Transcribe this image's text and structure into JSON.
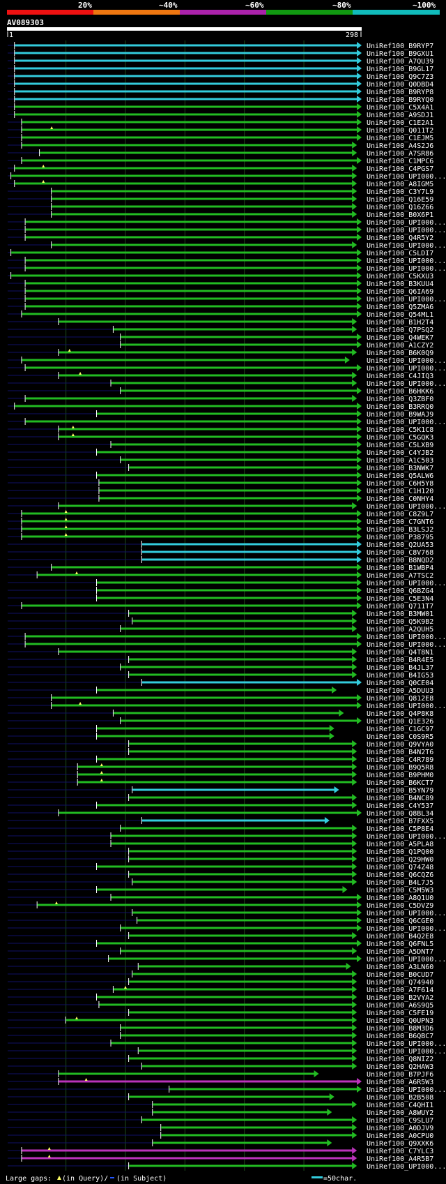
{
  "header": {
    "scale_labels": [
      "20%",
      "~40%",
      "~60%",
      "~80%",
      "~100%"
    ],
    "scale_colors": [
      "#ee1111",
      "#ee7711",
      "#aa22aa",
      "#119911",
      "#11bbbb"
    ],
    "query_id": "AV089303",
    "ruler_start": "1",
    "ruler_end": "298"
  },
  "footer": {
    "gaps_label": "Large gaps:",
    "in_query": "(in Query)/",
    "in_subject": "(in Subject)",
    "scale_label": "=50char."
  },
  "colors": {
    "cyan": "#33ccdd",
    "green": "#22bb22",
    "magenta": "#bb33bb",
    "navy": "#111166",
    "gap_marker": "#ffff66",
    "grid": "#1b4a1b"
  },
  "chart_data": {
    "type": "alignment",
    "query_length": 298,
    "x_range": [
      1,
      298
    ],
    "grid_columns_at": [
      50,
      100,
      150,
      200,
      250
    ],
    "hits": [
      {
        "name": "UniRef100_B9RYP7",
        "start": 7,
        "end": 298,
        "color": "cyan"
      },
      {
        "name": "UniRef100_B9GXU1",
        "start": 7,
        "end": 298,
        "color": "cyan"
      },
      {
        "name": "UniRef100_A7QU39",
        "start": 7,
        "end": 298,
        "color": "cyan"
      },
      {
        "name": "UniRef100_B9GL17",
        "start": 7,
        "end": 298,
        "color": "cyan"
      },
      {
        "name": "UniRef100_Q9C7Z3",
        "start": 7,
        "end": 298,
        "color": "cyan"
      },
      {
        "name": "UniRef100_Q0DBD4",
        "start": 7,
        "end": 298,
        "color": "cyan"
      },
      {
        "name": "UniRef100_B9RYP8",
        "start": 7,
        "end": 298,
        "color": "cyan"
      },
      {
        "name": "UniRef100_B9RYQ0",
        "start": 7,
        "end": 298,
        "color": "cyan"
      },
      {
        "name": "UniRef100_C5X4A1",
        "start": 7,
        "end": 298,
        "color": "green"
      },
      {
        "name": "UniRef100_A9SDJ1",
        "start": 7,
        "end": 298,
        "color": "green"
      },
      {
        "name": "UniRef100_C1E2A1",
        "start": 13,
        "end": 298,
        "color": "green"
      },
      {
        "name": "UniRef100_Q011T2",
        "start": 13,
        "end": 298,
        "color": "green",
        "gaps": [
          38
        ]
      },
      {
        "name": "UniRef100_C1EJM5",
        "start": 13,
        "end": 298,
        "color": "green"
      },
      {
        "name": "UniRef100_A4S2J6",
        "start": 13,
        "end": 294,
        "color": "green"
      },
      {
        "name": "UniRef100_A7SR86",
        "start": 28,
        "end": 294,
        "color": "green"
      },
      {
        "name": "UniRef100_C1MPC6",
        "start": 13,
        "end": 298,
        "color": "green"
      },
      {
        "name": "UniRef100_C4PGS7",
        "start": 7,
        "end": 294,
        "color": "green",
        "gaps": [
          31
        ]
      },
      {
        "name": "UniRef100_UPI000...",
        "start": 4,
        "end": 294,
        "color": "green"
      },
      {
        "name": "UniRef100_A8IGM5",
        "start": 7,
        "end": 294,
        "color": "green",
        "gaps": [
          31
        ]
      },
      {
        "name": "UniRef100_C3Y7L9",
        "start": 38,
        "end": 294,
        "color": "green"
      },
      {
        "name": "UniRef100_Q16E59",
        "start": 38,
        "end": 294,
        "color": "green"
      },
      {
        "name": "UniRef100_Q16Z66",
        "start": 38,
        "end": 294,
        "color": "green"
      },
      {
        "name": "UniRef100_B0X6P1",
        "start": 38,
        "end": 294,
        "color": "green"
      },
      {
        "name": "UniRef100_UPI000...",
        "start": 16,
        "end": 298,
        "color": "green"
      },
      {
        "name": "UniRef100_UPI000...",
        "start": 16,
        "end": 298,
        "color": "green"
      },
      {
        "name": "UniRef100_Q4R5Y2",
        "start": 16,
        "end": 298,
        "color": "green"
      },
      {
        "name": "UniRef100_UPI000...",
        "start": 38,
        "end": 294,
        "color": "green"
      },
      {
        "name": "UniRef100_C5LDI7",
        "start": 4,
        "end": 298,
        "color": "green"
      },
      {
        "name": "UniRef100_UPI000...",
        "start": 16,
        "end": 298,
        "color": "green"
      },
      {
        "name": "UniRef100_UPI000...",
        "start": 16,
        "end": 298,
        "color": "green"
      },
      {
        "name": "UniRef100_C5KXU3",
        "start": 4,
        "end": 298,
        "color": "green"
      },
      {
        "name": "UniRef100_B3KUU4",
        "start": 16,
        "end": 298,
        "color": "green"
      },
      {
        "name": "UniRef100_Q6IA69",
        "start": 16,
        "end": 298,
        "color": "green"
      },
      {
        "name": "UniRef100_UPI000...",
        "start": 16,
        "end": 298,
        "color": "green"
      },
      {
        "name": "UniRef100_Q5ZMA6",
        "start": 16,
        "end": 298,
        "color": "green"
      },
      {
        "name": "UniRef100_Q54ML1",
        "start": 13,
        "end": 298,
        "color": "green"
      },
      {
        "name": "UniRef100_B1H2T4",
        "start": 44,
        "end": 294,
        "color": "green"
      },
      {
        "name": "UniRef100_Q7PSQ2",
        "start": 90,
        "end": 294,
        "color": "green"
      },
      {
        "name": "UniRef100_Q4WEK7",
        "start": 96,
        "end": 298,
        "color": "green"
      },
      {
        "name": "UniRef100_A1CZY2",
        "start": 96,
        "end": 298,
        "color": "green"
      },
      {
        "name": "UniRef100_B6K0Q9",
        "start": 44,
        "end": 294,
        "color": "green",
        "gaps": [
          53
        ]
      },
      {
        "name": "UniRef100_UPI000...",
        "start": 13,
        "end": 288,
        "color": "green"
      },
      {
        "name": "UniRef100_UPI000...",
        "start": 16,
        "end": 298,
        "color": "green"
      },
      {
        "name": "UniRef100_C4JIQ3",
        "start": 44,
        "end": 294,
        "color": "green",
        "gaps": [
          62
        ]
      },
      {
        "name": "UniRef100_UPI000...",
        "start": 88,
        "end": 294,
        "color": "green"
      },
      {
        "name": "UniRef100_B6HKK6",
        "start": 96,
        "end": 298,
        "color": "green"
      },
      {
        "name": "UniRef100_Q3ZBF0",
        "start": 16,
        "end": 294,
        "color": "green"
      },
      {
        "name": "UniRef100_B3RRQ0",
        "start": 7,
        "end": 298,
        "color": "green"
      },
      {
        "name": "UniRef100_B9WAJ9",
        "start": 76,
        "end": 298,
        "color": "green"
      },
      {
        "name": "UniRef100_UPI000...",
        "start": 16,
        "end": 298,
        "color": "green"
      },
      {
        "name": "UniRef100_C5K1C8",
        "start": 44,
        "end": 298,
        "color": "green",
        "gaps": [
          56
        ]
      },
      {
        "name": "UniRef100_C5GQK3",
        "start": 44,
        "end": 298,
        "color": "green",
        "gaps": [
          56
        ]
      },
      {
        "name": "UniRef100_C5LXB9",
        "start": 88,
        "end": 298,
        "color": "green"
      },
      {
        "name": "UniRef100_C4YJB2",
        "start": 76,
        "end": 298,
        "color": "green"
      },
      {
        "name": "UniRef100_A1C503",
        "start": 96,
        "end": 298,
        "color": "green"
      },
      {
        "name": "UniRef100_B3NWK7",
        "start": 103,
        "end": 298,
        "color": "green"
      },
      {
        "name": "UniRef100_Q5ALW6",
        "start": 76,
        "end": 298,
        "color": "green"
      },
      {
        "name": "UniRef100_C6H5Y8",
        "start": 78,
        "end": 298,
        "color": "green"
      },
      {
        "name": "UniRef100_C1H120",
        "start": 78,
        "end": 298,
        "color": "green"
      },
      {
        "name": "UniRef100_C0NHY4",
        "start": 78,
        "end": 298,
        "color": "green"
      },
      {
        "name": "UniRef100_UPI000...",
        "start": 44,
        "end": 294,
        "color": "green"
      },
      {
        "name": "UniRef100_C8Z9L7",
        "start": 13,
        "end": 298,
        "color": "green",
        "gaps": [
          50
        ]
      },
      {
        "name": "UniRef100_C7GNT6",
        "start": 13,
        "end": 298,
        "color": "green",
        "gaps": [
          50
        ]
      },
      {
        "name": "UniRef100_B3LSJ2",
        "start": 13,
        "end": 298,
        "color": "green",
        "gaps": [
          50
        ]
      },
      {
        "name": "UniRef100_P38795",
        "start": 13,
        "end": 298,
        "color": "green",
        "gaps": [
          50
        ]
      },
      {
        "name": "UniRef100_Q2UA53",
        "start": 114,
        "end": 298,
        "color": "cyan"
      },
      {
        "name": "UniRef100_C8V768",
        "start": 114,
        "end": 298,
        "color": "cyan"
      },
      {
        "name": "UniRef100_B8NQD2",
        "start": 114,
        "end": 298,
        "color": "cyan"
      },
      {
        "name": "UniRef100_B1WBP4",
        "start": 38,
        "end": 298,
        "color": "green"
      },
      {
        "name": "UniRef100_A7TSC2",
        "start": 26,
        "end": 298,
        "color": "green",
        "gaps": [
          59
        ]
      },
      {
        "name": "UniRef100_UPI000...",
        "start": 76,
        "end": 298,
        "color": "green"
      },
      {
        "name": "UniRef100_Q6BZG4",
        "start": 76,
        "end": 298,
        "color": "green"
      },
      {
        "name": "UniRef100_C5E3N4",
        "start": 76,
        "end": 298,
        "color": "green"
      },
      {
        "name": "UniRef100_Q711T7",
        "start": 13,
        "end": 298,
        "color": "green"
      },
      {
        "name": "UniRef100_B3MW01",
        "start": 103,
        "end": 294,
        "color": "green"
      },
      {
        "name": "UniRef100_Q5K9B2",
        "start": 106,
        "end": 294,
        "color": "green"
      },
      {
        "name": "UniRef100_A2QUH5",
        "start": 96,
        "end": 294,
        "color": "green"
      },
      {
        "name": "UniRef100_UPI000...",
        "start": 16,
        "end": 298,
        "color": "green"
      },
      {
        "name": "UniRef100_UPI000...",
        "start": 16,
        "end": 298,
        "color": "green"
      },
      {
        "name": "UniRef100_Q4T8N1",
        "start": 44,
        "end": 294,
        "color": "green"
      },
      {
        "name": "UniRef100_B4R4E5",
        "start": 103,
        "end": 294,
        "color": "green"
      },
      {
        "name": "UniRef100_B4JL37",
        "start": 96,
        "end": 294,
        "color": "green"
      },
      {
        "name": "UniRef100_B4IG53",
        "start": 103,
        "end": 294,
        "color": "green"
      },
      {
        "name": "UniRef100_Q0CE04",
        "start": 114,
        "end": 298,
        "color": "cyan"
      },
      {
        "name": "UniRef100_A5DUU3",
        "start": 76,
        "end": 277,
        "color": "green"
      },
      {
        "name": "UniRef100_Q812E8",
        "start": 38,
        "end": 298,
        "color": "green"
      },
      {
        "name": "UniRef100_UPI000...",
        "start": 38,
        "end": 298,
        "color": "green",
        "gaps": [
          62
        ]
      },
      {
        "name": "UniRef100_Q4P8K8",
        "start": 90,
        "end": 283,
        "color": "green"
      },
      {
        "name": "UniRef100_Q1E326",
        "start": 96,
        "end": 298,
        "color": "green"
      },
      {
        "name": "UniRef100_C1GC97",
        "start": 76,
        "end": 275,
        "color": "green"
      },
      {
        "name": "UniRef100_C0S9R5",
        "start": 76,
        "end": 275,
        "color": "green"
      },
      {
        "name": "UniRef100_Q9VYA0",
        "start": 103,
        "end": 294,
        "color": "green"
      },
      {
        "name": "UniRef100_B4N2T6",
        "start": 103,
        "end": 294,
        "color": "green"
      },
      {
        "name": "UniRef100_C4R789",
        "start": 76,
        "end": 294,
        "color": "green"
      },
      {
        "name": "UniRef100_B9Q5R8",
        "start": 60,
        "end": 294,
        "color": "green",
        "gaps": [
          80
        ]
      },
      {
        "name": "UniRef100_B9PHM0",
        "start": 60,
        "end": 294,
        "color": "green",
        "gaps": [
          80
        ]
      },
      {
        "name": "UniRef100_B6KCT7",
        "start": 60,
        "end": 294,
        "color": "green",
        "gaps": [
          80
        ]
      },
      {
        "name": "UniRef100_B5YN79",
        "start": 106,
        "end": 279,
        "color": "cyan"
      },
      {
        "name": "UniRef100_B4NC89",
        "start": 103,
        "end": 294,
        "color": "green"
      },
      {
        "name": "UniRef100_C4Y537",
        "start": 76,
        "end": 294,
        "color": "green"
      },
      {
        "name": "UniRef100_Q8BL34",
        "start": 44,
        "end": 298,
        "color": "green"
      },
      {
        "name": "UniRef100_B7FXX5",
        "start": 114,
        "end": 271,
        "color": "cyan"
      },
      {
        "name": "UniRef100_C5P8E4",
        "start": 96,
        "end": 294,
        "color": "green"
      },
      {
        "name": "UniRef100_UPI000...",
        "start": 88,
        "end": 294,
        "color": "green"
      },
      {
        "name": "UniRef100_A5PLA8",
        "start": 88,
        "end": 294,
        "color": "green"
      },
      {
        "name": "UniRef100_Q1PQ00",
        "start": 103,
        "end": 294,
        "color": "green"
      },
      {
        "name": "UniRef100_Q29HW0",
        "start": 103,
        "end": 294,
        "color": "green"
      },
      {
        "name": "UniRef100_Q74Z48",
        "start": 76,
        "end": 294,
        "color": "green"
      },
      {
        "name": "UniRef100_Q6CQZ6",
        "start": 103,
        "end": 294,
        "color": "green"
      },
      {
        "name": "UniRef100_B4L7J5",
        "start": 106,
        "end": 294,
        "color": "green"
      },
      {
        "name": "UniRef100_C5M5W3",
        "start": 76,
        "end": 286,
        "color": "green"
      },
      {
        "name": "UniRef100_A8Q1U0",
        "start": 88,
        "end": 298,
        "color": "green"
      },
      {
        "name": "UniRef100_C5DVZ9",
        "start": 26,
        "end": 298,
        "color": "green",
        "gaps": [
          42
        ]
      },
      {
        "name": "UniRef100_UPI000...",
        "start": 106,
        "end": 298,
        "color": "green"
      },
      {
        "name": "UniRef100_Q6CGE0",
        "start": 110,
        "end": 298,
        "color": "green"
      },
      {
        "name": "UniRef100_UPI000...",
        "start": 96,
        "end": 298,
        "color": "green"
      },
      {
        "name": "UniRef100_B4Q2E8",
        "start": 103,
        "end": 294,
        "color": "green"
      },
      {
        "name": "UniRef100_Q6FNL5",
        "start": 76,
        "end": 298,
        "color": "green"
      },
      {
        "name": "UniRef100_A5DNT7",
        "start": 96,
        "end": 294,
        "color": "green"
      },
      {
        "name": "UniRef100_UPI000...",
        "start": 86,
        "end": 298,
        "color": "green"
      },
      {
        "name": "UniRef100_A3LN60",
        "start": 111,
        "end": 289,
        "color": "green"
      },
      {
        "name": "UniRef100_B0CUD7",
        "start": 106,
        "end": 294,
        "color": "green"
      },
      {
        "name": "UniRef100_Q74940",
        "start": 103,
        "end": 294,
        "color": "green"
      },
      {
        "name": "UniRef100_A7F614",
        "start": 90,
        "end": 294,
        "color": "green",
        "gaps": [
          100
        ]
      },
      {
        "name": "UniRef100_B2VYA2",
        "start": 76,
        "end": 294,
        "color": "green"
      },
      {
        "name": "UniRef100_A6S9Q5",
        "start": 78,
        "end": 294,
        "color": "green"
      },
      {
        "name": "UniRef100_C5FE19",
        "start": 103,
        "end": 294,
        "color": "green"
      },
      {
        "name": "UniRef100_Q0UPN3",
        "start": 50,
        "end": 294,
        "color": "green",
        "gaps": [
          59
        ]
      },
      {
        "name": "UniRef100_B8M3D6",
        "start": 96,
        "end": 294,
        "color": "green"
      },
      {
        "name": "UniRef100_B6QBC7",
        "start": 96,
        "end": 294,
        "color": "green"
      },
      {
        "name": "UniRef100_UPI000...",
        "start": 88,
        "end": 294,
        "color": "green"
      },
      {
        "name": "UniRef100_UPI000...",
        "start": 111,
        "end": 294,
        "color": "green"
      },
      {
        "name": "UniRef100_Q8NIZ2",
        "start": 103,
        "end": 294,
        "color": "green"
      },
      {
        "name": "UniRef100_Q2HAW3",
        "start": 114,
        "end": 294,
        "color": "green"
      },
      {
        "name": "UniRef100_B7PJF6",
        "start": 44,
        "end": 262,
        "color": "green"
      },
      {
        "name": "UniRef100_A6R5W3",
        "start": 44,
        "end": 298,
        "color": "magenta",
        "gaps": [
          67
        ]
      },
      {
        "name": "UniRef100_UPI000...",
        "start": 137,
        "end": 298,
        "color": "green"
      },
      {
        "name": "UniRef100_B2B508",
        "start": 103,
        "end": 275,
        "color": "green"
      },
      {
        "name": "UniRef100_C4QHI1",
        "start": 123,
        "end": 294,
        "color": "green"
      },
      {
        "name": "UniRef100_A8WUY2",
        "start": 123,
        "end": 273,
        "color": "green"
      },
      {
        "name": "UniRef100_C9SLU7",
        "start": 114,
        "end": 294,
        "color": "green"
      },
      {
        "name": "UniRef100_A0DJV9",
        "start": 130,
        "end": 294,
        "color": "green"
      },
      {
        "name": "UniRef100_A0CPU0",
        "start": 130,
        "end": 294,
        "color": "green"
      },
      {
        "name": "UniRef100_Q9XXK6",
        "start": 123,
        "end": 273,
        "color": "green"
      },
      {
        "name": "UniRef100_C7YLC3",
        "start": 13,
        "end": 294,
        "color": "magenta",
        "gaps": [
          36
        ]
      },
      {
        "name": "UniRef100_A4R5B7",
        "start": 13,
        "end": 294,
        "color": "magenta",
        "gaps": [
          36
        ]
      },
      {
        "name": "UniRef100_UPI000...",
        "start": 103,
        "end": 294,
        "color": "green"
      }
    ]
  }
}
